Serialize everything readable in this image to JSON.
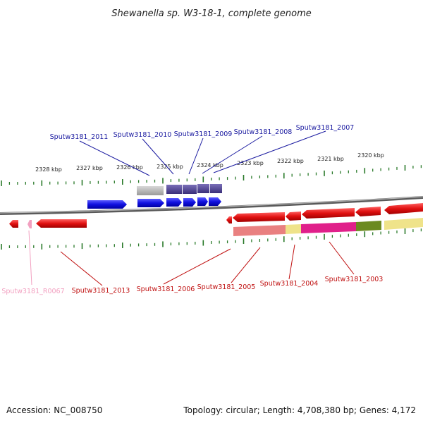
{
  "title": "Shewanella sp. W3-18-1, complete genome",
  "footer": {
    "accession": "Accession: NC_008750",
    "topology": "Topology: circular; Length: 4,708,380 bp; Genes: 4,172"
  },
  "ruler_labels": [
    "2328 kbp",
    "2327 kbp",
    "2326 kbp",
    "2325 kbp",
    "2324 kbp",
    "2323 kbp",
    "2322 kbp",
    "2321 kbp",
    "2320 kbp"
  ],
  "forward_gene_labels": [
    "Sputw3181_2011",
    "Sputw3181_2010",
    "Sputw3181_2009",
    "Sputw3181_2008",
    "Sputw3181_2007"
  ],
  "reverse_gene_labels": [
    "Sputw3181_R0067",
    "Sputw3181_2013",
    "Sputw3181_2006",
    "Sputw3181_2005",
    "Sputw3181_2004",
    "Sputw3181_2003"
  ],
  "colors": {
    "forward_gene": "#1010e0",
    "forward_operon": "#4a3d8f",
    "reverse_gene": "#e01010",
    "rna_gene": "#f2a0c0",
    "genome_line": "#7a7a7a",
    "tick": "#2a7a2a",
    "forward_label": "#1a1aa0",
    "reverse_label": "#c01010"
  }
}
